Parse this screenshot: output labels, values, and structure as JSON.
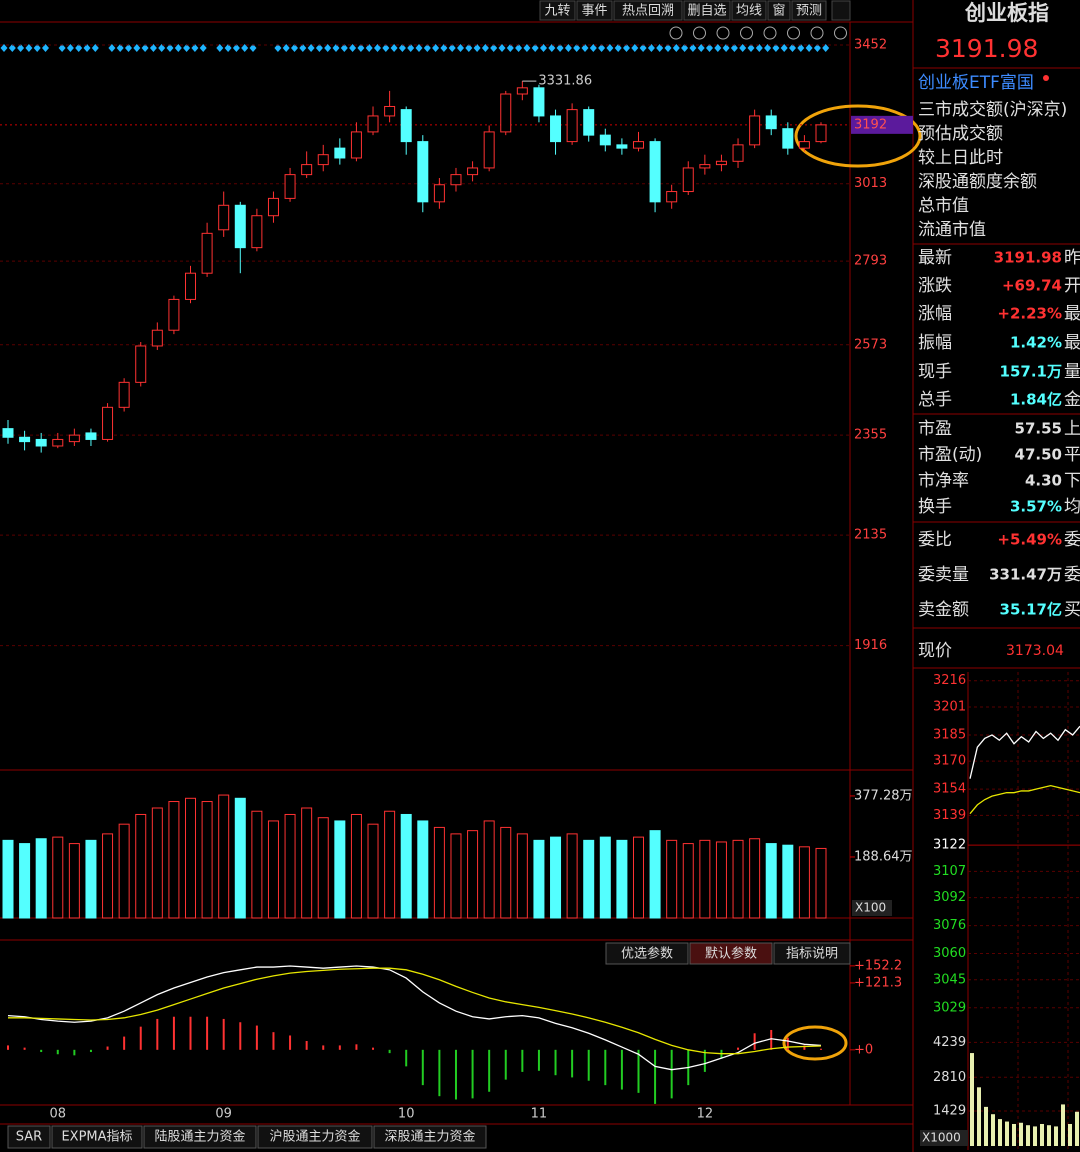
{
  "toolbar": [
    "九转",
    "事件",
    "热点回溯",
    "删自选",
    "均线",
    "窗",
    "预测"
  ],
  "header": {
    "title": "创业板指",
    "price": "3191.98",
    "etf": "创业板ETF富国"
  },
  "info_lines": [
    "三市成交额(沪深京)",
    "预估成交额",
    "较上日此时",
    "深股通额度余额",
    "总市值",
    "流通市值"
  ],
  "quote_rows": [
    {
      "label": "最新",
      "value": "3191.98",
      "color": "#ff3232",
      "extra": "昨"
    },
    {
      "label": "涨跌",
      "value": "+69.74",
      "color": "#ff3232",
      "extra": "开"
    },
    {
      "label": "涨幅",
      "value": "+2.23%",
      "color": "#ff3232",
      "extra": "最"
    },
    {
      "label": "振幅",
      "value": "1.42%",
      "color": "#54ffff",
      "extra": "最"
    },
    {
      "label": "现手",
      "value": "157.1万",
      "color": "#54ffff",
      "extra": "量"
    },
    {
      "label": "总手",
      "value": "1.84亿",
      "color": "#54ffff",
      "extra": "金"
    },
    {
      "label": "市盈",
      "value": "57.55",
      "color": "#e0e0e0",
      "extra": "上"
    },
    {
      "label": "市盈(动)",
      "value": "47.50",
      "color": "#e0e0e0",
      "extra": "平"
    },
    {
      "label": "市净率",
      "value": "4.30",
      "color": "#e0e0e0",
      "extra": "下"
    },
    {
      "label": "换手",
      "value": "3.57%",
      "color": "#54ffff",
      "extra": "均"
    },
    {
      "label": "委比",
      "value": "+5.49%",
      "color": "#ff3232",
      "extra": "委"
    },
    {
      "label": "委卖量",
      "value": "331.47万",
      "color": "#e0e0e0",
      "extra": "委"
    },
    {
      "label": "卖金额",
      "value": "35.17亿",
      "color": "#54ffff",
      "extra": "买"
    }
  ],
  "current": {
    "label": "现价",
    "value": "3173.04"
  },
  "macd_buttons": [
    "优选参数",
    "默认参数",
    "指标说明"
  ],
  "tabs": [
    "SAR",
    "EXPMA指标",
    "陆股通主力资金",
    "沪股通主力资金",
    "深股通主力资金"
  ],
  "chart_data": [
    {
      "type": "candlestick",
      "categories": [
        null,
        null,
        null,
        "08",
        null,
        null,
        null,
        null,
        null,
        null,
        null,
        null,
        null,
        "09",
        null,
        null,
        null,
        null,
        null,
        null,
        null,
        null,
        null,
        null,
        "10",
        null,
        null,
        null,
        null,
        null,
        null,
        null,
        "11",
        null,
        null,
        null,
        null,
        null,
        null,
        null,
        null,
        null,
        "12",
        null,
        null,
        null,
        null,
        null,
        null,
        null
      ],
      "open": [
        2370,
        2350,
        2345,
        2330,
        2340,
        2360,
        2345,
        2420,
        2480,
        2570,
        2610,
        2690,
        2760,
        2880,
        2950,
        2830,
        2920,
        2970,
        3040,
        3070,
        3120,
        3090,
        3170,
        3220,
        3240,
        3140,
        2960,
        3010,
        3040,
        3060,
        3170,
        3290,
        3310,
        3220,
        3140,
        3240,
        3160,
        3130,
        3120,
        3140,
        2960,
        2990,
        3060,
        3070,
        3080,
        3130,
        3220,
        3180,
        3120,
        3140
      ],
      "high": [
        2390,
        2365,
        2360,
        2360,
        2370,
        2370,
        2430,
        2490,
        2580,
        2630,
        2700,
        2780,
        2900,
        2990,
        2960,
        2940,
        2990,
        3060,
        3110,
        3130,
        3150,
        3200,
        3250,
        3300,
        3250,
        3160,
        3030,
        3060,
        3080,
        3190,
        3300,
        3331.86,
        3320,
        3240,
        3260,
        3250,
        3180,
        3150,
        3170,
        3150,
        3010,
        3080,
        3100,
        3100,
        3150,
        3240,
        3240,
        3200,
        3160,
        3200
      ],
      "low": [
        2335,
        2320,
        2315,
        2325,
        2330,
        2330,
        2340,
        2410,
        2470,
        2560,
        2600,
        2680,
        2750,
        2860,
        2760,
        2820,
        2900,
        2960,
        3030,
        3050,
        3070,
        3080,
        3160,
        3200,
        3100,
        2930,
        2940,
        2990,
        3020,
        3050,
        3160,
        3270,
        3200,
        3100,
        3130,
        3140,
        3110,
        3100,
        3110,
        2930,
        2940,
        2980,
        3040,
        3050,
        3060,
        3120,
        3160,
        3100,
        3110,
        3135
      ],
      "close": [
        2350,
        2340,
        2330,
        2345,
        2355,
        2345,
        2420,
        2480,
        2570,
        2610,
        2690,
        2760,
        2870,
        2950,
        2830,
        2920,
        2970,
        3040,
        3070,
        3100,
        3090,
        3170,
        3220,
        3250,
        3140,
        2960,
        3010,
        3040,
        3060,
        3170,
        3290,
        3310,
        3220,
        3140,
        3240,
        3160,
        3130,
        3120,
        3140,
        2960,
        2990,
        3060,
        3070,
        3080,
        3130,
        3220,
        3180,
        3120,
        3140,
        3191.98
      ],
      "ylim": [
        1696,
        3503
      ],
      "log_scale": true,
      "yticks": [
        3452,
        3013,
        2793,
        2573,
        2355,
        2135,
        1916
      ],
      "last_price_label": {
        "value": 3191.98,
        "label": "3192"
      },
      "up_color": "#ff3232",
      "down_color": "#54ffff",
      "axis_color": "#ff4040"
    },
    {
      "type": "bar",
      "values": [
        240,
        230,
        245,
        250,
        230,
        240,
        260,
        290,
        320,
        340,
        360,
        370,
        360,
        380,
        370,
        330,
        300,
        320,
        340,
        310,
        300,
        320,
        290,
        330,
        320,
        300,
        280,
        260,
        270,
        300,
        280,
        260,
        240,
        250,
        260,
        240,
        250,
        240,
        250,
        270,
        240,
        230,
        240,
        235,
        240,
        245,
        230,
        225,
        220,
        215
      ],
      "ylim": [
        0,
        442
      ],
      "yticks": [
        {
          "value": 377.28,
          "label": "377.28万"
        },
        {
          "value": 188.64,
          "label": "188.64万"
        }
      ],
      "unit_label": "X100"
    },
    {
      "type": "macd",
      "series": [
        {
          "color": "#ffffff",
          "values": [
            62,
            60,
            55,
            52,
            50,
            52,
            58,
            70,
            85,
            100,
            112,
            122,
            132,
            140,
            145,
            150,
            150,
            152,
            150,
            148,
            150,
            152,
            150,
            145,
            130,
            105,
            85,
            70,
            60,
            56,
            60,
            62,
            58,
            48,
            40,
            30,
            18,
            5,
            -8,
            -30,
            -36,
            -32,
            -25,
            -15,
            -5,
            12,
            20,
            16,
            10,
            8
          ]
        },
        {
          "color": "#e6e600",
          "values": [
            58,
            58,
            57,
            56,
            55,
            54,
            55,
            58,
            64,
            72,
            82,
            92,
            102,
            112,
            120,
            128,
            134,
            139,
            142,
            144,
            146,
            147,
            148,
            148,
            145,
            137,
            127,
            115,
            104,
            94,
            87,
            82,
            77,
            71,
            65,
            58,
            50,
            41,
            31,
            19,
            8,
            0,
            -5,
            -7,
            -7,
            -3,
            2,
            5,
            6,
            7
          ]
        }
      ],
      "histogram": [
        8,
        4,
        -4,
        -8,
        -10,
        -4,
        6,
        24,
        42,
        56,
        60,
        60,
        60,
        56,
        50,
        44,
        32,
        26,
        16,
        8,
        8,
        10,
        4,
        -6,
        -30,
        -64,
        -84,
        -90,
        -88,
        -76,
        -54,
        -40,
        -38,
        -46,
        -50,
        -56,
        -64,
        -72,
        -78,
        -98,
        -88,
        -64,
        -40,
        -16,
        4,
        30,
        36,
        22,
        8,
        2
      ],
      "ylim": [
        -100,
        190
      ],
      "yticks": [
        {
          "value": 152.2,
          "label": "+152.2"
        },
        {
          "value": 121.3,
          "label": "+121.3"
        },
        {
          "value": 0,
          "label": "+0"
        }
      ],
      "up_color": "#ff3232",
      "down_color": "#22cc22"
    },
    {
      "type": "line",
      "series": [
        {
          "color": "#ffffff",
          "values": [
            3160,
            3178,
            3183,
            3185,
            3182,
            3186,
            3180,
            3184,
            3181,
            3187,
            3183,
            3186,
            3182,
            3188,
            3185,
            3190
          ]
        },
        {
          "color": "#e6e600",
          "values": [
            3140,
            3145,
            3148,
            3150,
            3151,
            3152,
            3152,
            3153,
            3153,
            3154,
            3155,
            3156,
            3155,
            3154,
            3153,
            3152
          ]
        }
      ],
      "ylim": [
        3022,
        3221
      ],
      "yticks": [
        3216,
        3201,
        3185,
        3170,
        3154,
        3139,
        3122,
        3107,
        3092,
        3076,
        3060,
        3045,
        3029
      ]
    },
    {
      "type": "bar",
      "values": [
        3800,
        2400,
        1600,
        1300,
        1100,
        1000,
        900,
        950,
        850,
        800,
        900,
        850,
        800,
        1700,
        900,
        1400
      ],
      "ylim": [
        0,
        4743
      ],
      "yticks": [
        4239,
        2810,
        1429
      ],
      "unit_label": "X1000",
      "color": "#e8f0b0"
    }
  ]
}
